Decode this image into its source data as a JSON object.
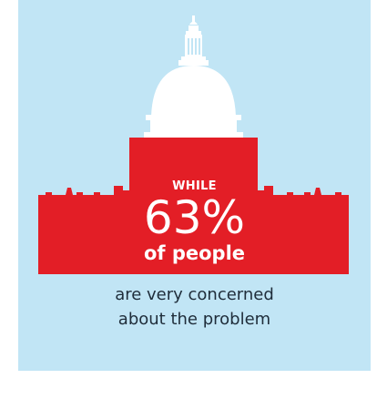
{
  "colors": {
    "background": "#c1e5f5",
    "capitol_top": "#ffffff",
    "capitol_base": "#e31e26",
    "caption_text": "#1f2d3a"
  },
  "graphic": {
    "icon": "us-capitol-building-icon"
  },
  "stat": {
    "kicker": "WHILE",
    "value": "63%",
    "subject": "of people"
  },
  "caption": {
    "line1": "are very concerned",
    "line2": "about the problem"
  }
}
